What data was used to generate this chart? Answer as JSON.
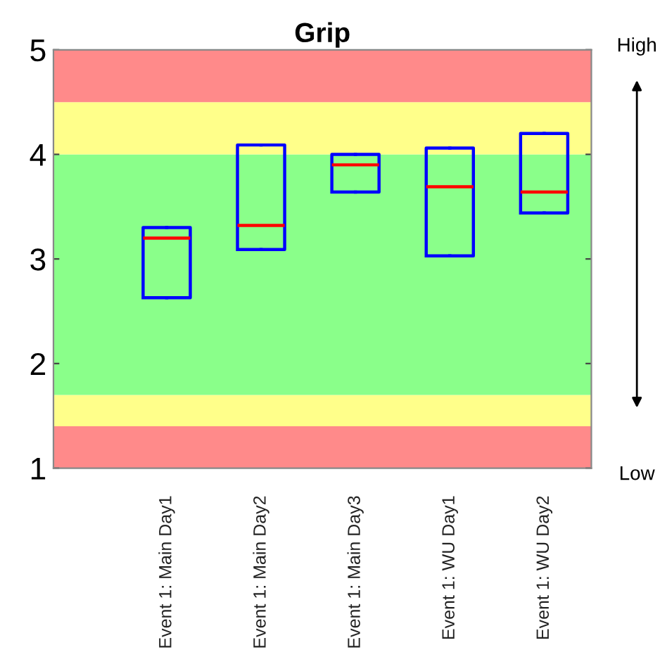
{
  "chart_data": {
    "type": "box",
    "title": "Grip",
    "categories": [
      "Event 1: Main Day1",
      "Event 1: Main Day2",
      "Event 1: Main Day3",
      "Event 1: WU Day1",
      "Event 1: WU Day2"
    ],
    "boxes": [
      {
        "low": 2.63,
        "q1": 2.63,
        "median": 3.2,
        "q3": 3.3,
        "high": 3.3
      },
      {
        "low": 3.09,
        "q1": 3.09,
        "median": 3.32,
        "q3": 4.09,
        "high": 4.09
      },
      {
        "low": 3.64,
        "q1": 3.64,
        "median": 3.9,
        "q3": 4.0,
        "high": 4.0
      },
      {
        "low": 3.03,
        "q1": 3.03,
        "median": 3.69,
        "q3": 4.06,
        "high": 4.06
      },
      {
        "low": 3.44,
        "q1": 3.44,
        "median": 3.64,
        "q3": 4.2,
        "high": 4.2
      }
    ],
    "ylim": [
      1,
      5
    ],
    "yticks": [
      1,
      2,
      3,
      4,
      5
    ],
    "bands": [
      {
        "axis": "y",
        "from": 1,
        "to": 1.4,
        "color": "#ff8a8a"
      },
      {
        "axis": "y",
        "from": 1.4,
        "to": 1.7,
        "color": "#ffff8a"
      },
      {
        "axis": "y",
        "from": 1.7,
        "to": 4,
        "color": "#8aff8a"
      },
      {
        "axis": "y",
        "from": 4,
        "to": 4.5,
        "color": "#ffff8a"
      },
      {
        "axis": "y",
        "from": 4.5,
        "to": 5,
        "color": "#ff8a8a"
      }
    ],
    "annotations": [
      "High",
      "Low"
    ],
    "grid": false,
    "legend": false
  }
}
